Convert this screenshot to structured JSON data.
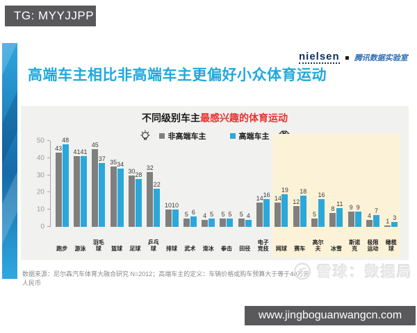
{
  "badges": {
    "tg": "TG: MYYJJPP",
    "website": "www.jingboguanwangcn.com"
  },
  "header": {
    "brand": "nielsen",
    "partner": "腾讯数据实验室",
    "title": "高端车主相比非高端车主更偏好小众体育运动"
  },
  "chart": {
    "title_prefix": "不同级别车主",
    "title_highlight": "最感兴趣的体育运动",
    "source_note": "数据来源：尼尔森汽车体育大融合研究 N=2012；高端车主的定义：车辆价格或购车预算大于等于40万元人民币"
  },
  "watermark": {
    "brand": "雪球：数据局"
  },
  "chart_data": {
    "type": "bar",
    "title": "不同级别车主最感兴趣的体育运动",
    "categories": [
      "跑步",
      "游泳",
      "羽毛球",
      "篮球",
      "足球",
      "乒乓球",
      "排球",
      "武术",
      "滑冰",
      "拳击",
      "田径",
      "电子竞技",
      "网球",
      "赛车",
      "高尔夫",
      "冰雪",
      "斯诺克",
      "极限运动",
      "橄榄球"
    ],
    "category_lines": [
      [
        "跑步"
      ],
      [
        "游泳"
      ],
      [
        "羽毛",
        "球"
      ],
      [
        "篮球"
      ],
      [
        "足球"
      ],
      [
        "乒乓",
        "球"
      ],
      [
        "排球"
      ],
      [
        "武术"
      ],
      [
        "滑冰"
      ],
      [
        "拳击"
      ],
      [
        "田径"
      ],
      [
        "电子",
        "竞技"
      ],
      [
        "网球"
      ],
      [
        "赛车"
      ],
      [
        "高尔",
        "夫"
      ],
      [
        "冰雪"
      ],
      [
        "斯诺",
        "克"
      ],
      [
        "极限",
        "运动"
      ],
      [
        "橄榄",
        "球"
      ]
    ],
    "series": [
      {
        "name": "非高端车主",
        "color": "#7F7F7F",
        "values": [
          43,
          41,
          45,
          35,
          30,
          32,
          10,
          5,
          4,
          5,
          5,
          14,
          14,
          12,
          5,
          8,
          9,
          4,
          1
        ]
      },
      {
        "name": "高端车主",
        "color": "#2BA8D9",
        "values": [
          48,
          41,
          37,
          34,
          28,
          22,
          10,
          6,
          5,
          5,
          4,
          16,
          19,
          18,
          16,
          11,
          9,
          7,
          3
        ]
      }
    ],
    "ylim": [
      0,
      50
    ],
    "yticks": [
      0,
      10,
      20,
      30,
      40,
      50
    ],
    "grid": false,
    "legend_position": "top",
    "highlight": {
      "from": "网球",
      "to": "橄榄球",
      "color": "#FCF2D8"
    }
  }
}
